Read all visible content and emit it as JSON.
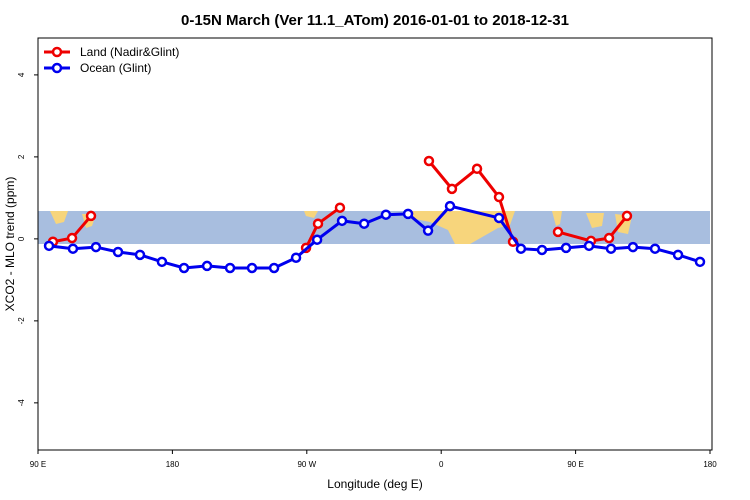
{
  "chart_data": {
    "type": "line",
    "title": "0-15N March (Ver 11.1_ATom)   2016-01-01 to 2018-12-31",
    "x_label": "Longitude (deg E)",
    "y_label": "XCO2 - MLO trend (ppm)",
    "xlim": [
      90,
      540
    ],
    "xticks": [
      {
        "value": 90,
        "label": "90 E"
      },
      180,
      {
        "value": 270,
        "label": "90 W"
      },
      {
        "value": 360,
        "label": "0"
      },
      {
        "value": 450,
        "label": "90 E"
      },
      {
        "value": 540,
        "label": "180"
      }
    ],
    "ylim": [
      -5.15,
      4.9
    ],
    "yticks": [
      -4,
      -2,
      0,
      2,
      4
    ],
    "legend": "top-left",
    "series": [
      {
        "name": "Land (Nadir&Glint)",
        "color": "#ee0000",
        "x": [
          100,
          112.8,
          125.5,
          null,
          269.5,
          277.5,
          292.2,
          null,
          351.8,
          367.2,
          384,
          398.7,
          408.1,
          null,
          438.2,
          460.3,
          472.4,
          484.4
        ],
        "values": [
          -0.07,
          0.02,
          0.56,
          null,
          -0.22,
          0.37,
          0.76,
          null,
          1.9,
          1.22,
          1.71,
          1.02,
          -0.07,
          null,
          0.17,
          -0.05,
          0.02,
          0.56
        ]
      },
      {
        "name": "Ocean (Glint)",
        "color": "#0000ee",
        "x": [
          97.4,
          113.4,
          128.8,
          143.6,
          158.3,
          173,
          187.8,
          203.2,
          218.6,
          233.3,
          248.1,
          262.8,
          276.9,
          293.6,
          308.4,
          323,
          337.8,
          351.2,
          365.9,
          398.7,
          413.4,
          427.5,
          443.6,
          459,
          473.7,
          488.4,
          503.2,
          518.6,
          533.3
        ],
        "values": [
          -0.17,
          -0.24,
          -0.2,
          -0.32,
          -0.39,
          -0.56,
          -0.71,
          -0.66,
          -0.71,
          -0.71,
          -0.71,
          -0.46,
          -0.02,
          0.44,
          0.37,
          0.59,
          0.61,
          0.2,
          0.8,
          0.51,
          -0.24,
          -0.27,
          -0.22,
          -0.17,
          -0.24,
          -0.2,
          -0.24,
          -0.39,
          -0.56
        ]
      }
    ]
  }
}
